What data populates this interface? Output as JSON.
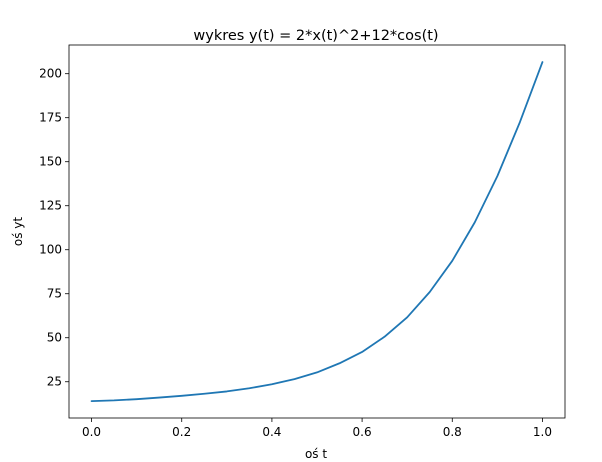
{
  "chart_data": {
    "type": "line",
    "title": "wykres y(t) = 2*x(t)^2+12*cos(t)",
    "xlabel": "oś t",
    "ylabel": "oś yt",
    "xlim": [
      -0.05,
      1.05
    ],
    "ylim": [
      4.4,
      216.3
    ],
    "xticks": [
      0.0,
      0.2,
      0.4,
      0.6,
      0.8,
      1.0
    ],
    "xtick_labels": [
      "0.0",
      "0.2",
      "0.4",
      "0.6",
      "0.8",
      "1.0"
    ],
    "yticks": [
      25,
      50,
      75,
      100,
      125,
      150,
      175,
      200
    ],
    "ytick_labels": [
      "25",
      "50",
      "75",
      "100",
      "125",
      "150",
      "175",
      "200"
    ],
    "grid": false,
    "series": [
      {
        "color": "#1f77b4",
        "x": [
          0.0,
          0.05,
          0.1,
          0.15,
          0.2,
          0.25,
          0.3,
          0.35,
          0.4,
          0.45,
          0.5,
          0.55,
          0.6,
          0.65,
          0.7,
          0.75,
          0.8,
          0.85,
          0.9,
          0.95,
          1.0
        ],
        "y": [
          14.0,
          14.4,
          15.1,
          16.0,
          17.0,
          18.2,
          19.5,
          21.3,
          23.6,
          26.5,
          30.3,
          35.5,
          41.9,
          50.6,
          61.6,
          76.0,
          93.7,
          115.6,
          141.8,
          172.5,
          206.6
        ]
      }
    ]
  }
}
